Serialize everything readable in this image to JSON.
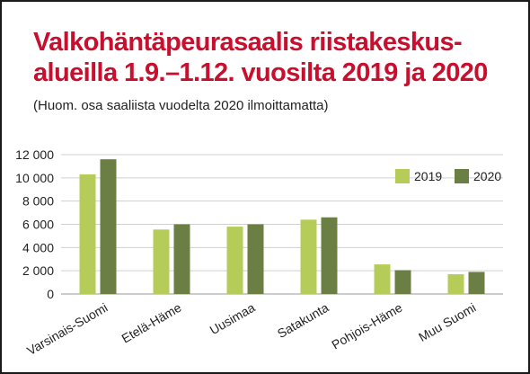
{
  "title": "Valkohäntäpeurasaalis riistakeskus-alueilla 1.9.–1.12. vuosilta 2019 ja 2020",
  "title_lines": [
    "Valkohäntäpeurasaalis riistakeskus-",
    "alueilla 1.9.–1.12. vuosilta 2019 ja 2020"
  ],
  "subtitle": "(Huom. osa saaliista vuodelta 2020 ilmoittamatta)",
  "colors": {
    "title": "#c8102e",
    "series_2019": "#b5cc59",
    "series_2020": "#6b7f45",
    "grid": "#d0d0d0"
  },
  "chart_data": {
    "type": "bar",
    "title": "Valkohäntäpeurasaalis riistakeskus-alueilla 1.9.–1.12. vuosilta 2019 ja 2020",
    "subtitle": "(Huom. osa saaliista vuodelta 2020 ilmoittamatta)",
    "xlabel": "",
    "ylabel": "",
    "ylim": [
      0,
      12000
    ],
    "yticks": [
      0,
      2000,
      4000,
      6000,
      8000,
      10000,
      12000
    ],
    "ytick_labels": [
      "0",
      "2 000",
      "4 000",
      "6 000",
      "8 000",
      "10 000",
      "12 000"
    ],
    "grid": true,
    "legend": "top-right",
    "categories": [
      "Varsinais-Suomi",
      "Etelä-Häme",
      "Uusimaa",
      "Satakunta",
      "Pohjois-Häme",
      "Muu Suomi"
    ],
    "series": [
      {
        "name": "2019",
        "values": [
          10300,
          5550,
          5800,
          6400,
          2550,
          1700
        ]
      },
      {
        "name": "2020",
        "values": [
          11600,
          6000,
          6000,
          6600,
          2050,
          1900
        ]
      }
    ]
  }
}
